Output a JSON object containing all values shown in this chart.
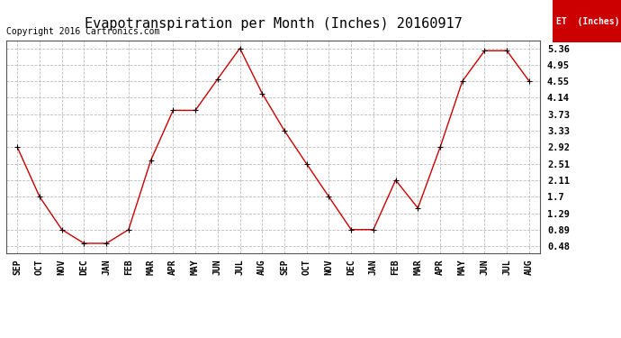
{
  "title": "Evapotranspiration per Month (Inches) 20160917",
  "copyright_text": "Copyright 2016 Cartronics.com",
  "legend_label": "ET  (Inches)",
  "x_labels": [
    "SEP",
    "OCT",
    "NOV",
    "DEC",
    "JAN",
    "FEB",
    "MAR",
    "APR",
    "MAY",
    "JUN",
    "JUL",
    "AUG",
    "SEP",
    "OCT",
    "NOV",
    "DEC",
    "JAN",
    "FEB",
    "MAR",
    "APR",
    "MAY",
    "JUN",
    "JUL",
    "AUG"
  ],
  "y_values": [
    2.92,
    1.7,
    0.89,
    0.55,
    0.55,
    0.89,
    2.6,
    3.83,
    3.83,
    4.6,
    5.36,
    4.25,
    3.33,
    2.51,
    1.7,
    0.89,
    0.89,
    2.11,
    1.42,
    2.92,
    4.55,
    5.3,
    5.3,
    4.55
  ],
  "y_ticks": [
    0.48,
    0.89,
    1.29,
    1.7,
    2.11,
    2.51,
    2.92,
    3.33,
    3.73,
    4.14,
    4.55,
    4.95,
    5.36
  ],
  "line_color": "#cc0000",
  "marker_color": "#000000",
  "grid_color": "#bbbbbb",
  "background_color": "#ffffff",
  "title_fontsize": 11,
  "copyright_fontsize": 7,
  "legend_bg_color": "#cc0000",
  "legend_text_color": "#ffffff",
  "ylim_min": 0.3,
  "ylim_max": 5.55
}
